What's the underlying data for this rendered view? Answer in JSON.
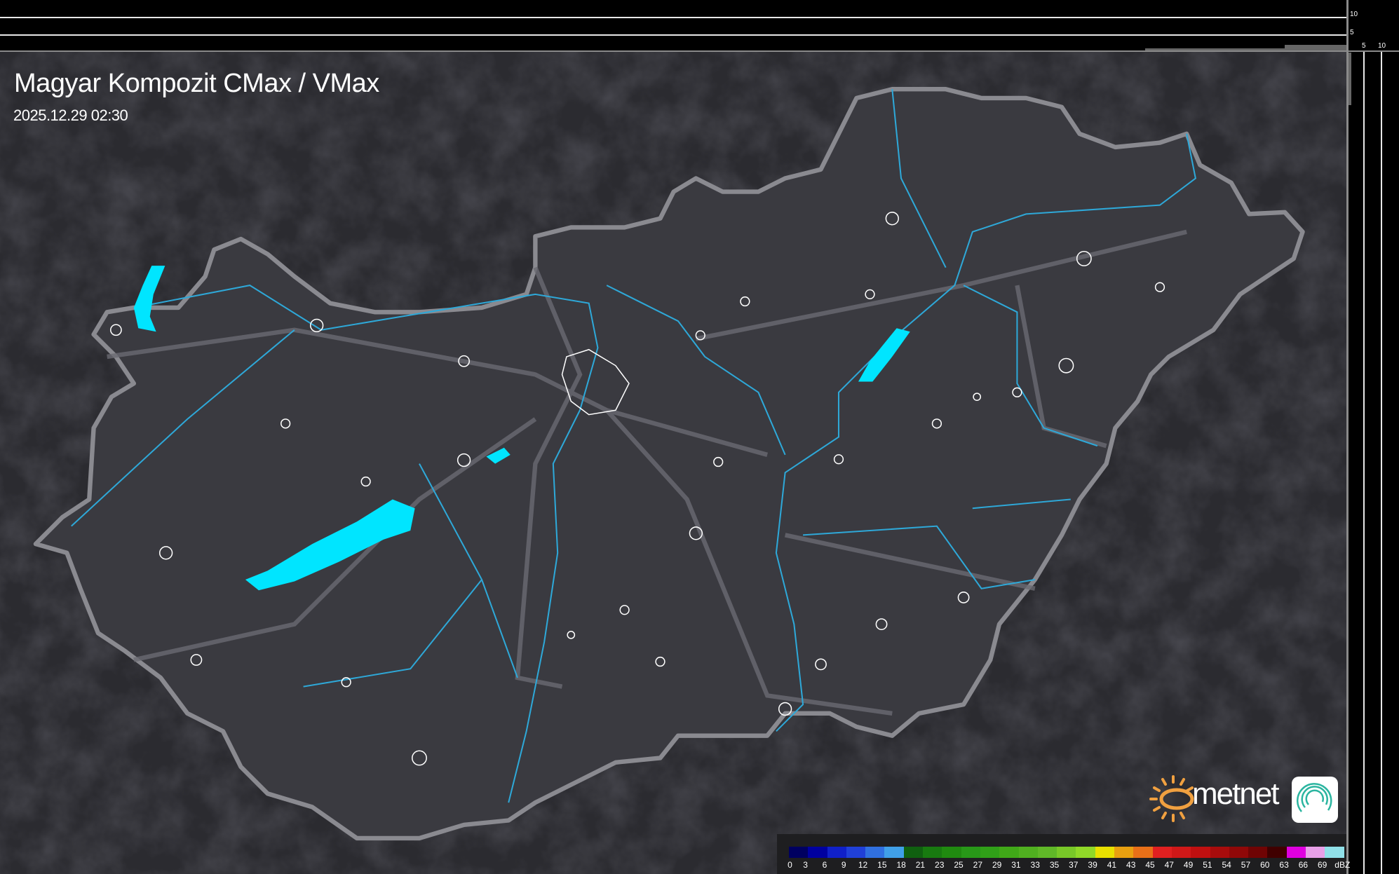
{
  "title": "Magyar Kompozit CMax / VMax",
  "timestamp": "2025.12.29 02:30",
  "profile_axes": {
    "top_ticks": [
      "10",
      "5"
    ],
    "right_ticks": [
      "5",
      "10"
    ]
  },
  "logo": {
    "brand": "metnet",
    "sun_color": "#f0a040",
    "app_icon_color": "#2bb5a0"
  },
  "colors": {
    "background": "#2b2b30",
    "country_border": "#8a8a90",
    "rivers": "#2ea8d8",
    "lakes": "#00e5ff",
    "settlements": "#ffffff"
  },
  "legend": {
    "unit": "dBZ",
    "labels": [
      "0",
      "3",
      "6",
      "9",
      "12",
      "15",
      "18",
      "21",
      "23",
      "25",
      "27",
      "29",
      "31",
      "33",
      "35",
      "37",
      "39",
      "41",
      "43",
      "45",
      "47",
      "49",
      "51",
      "54",
      "57",
      "60",
      "63",
      "66",
      "69"
    ],
    "colors": [
      "#000060",
      "#0000a0",
      "#1020c8",
      "#2040d8",
      "#3070e0",
      "#40a0e8",
      "#106010",
      "#187a10",
      "#208a10",
      "#289818",
      "#30a018",
      "#40a818",
      "#50b020",
      "#60b828",
      "#78c828",
      "#90d828",
      "#e8e000",
      "#e8a010",
      "#e87018",
      "#e02020",
      "#d01818",
      "#c01010",
      "#a80c0c",
      "#900808",
      "#700404",
      "#400000",
      "#e000e0",
      "#e8a0e8",
      "#90e0e8"
    ]
  }
}
